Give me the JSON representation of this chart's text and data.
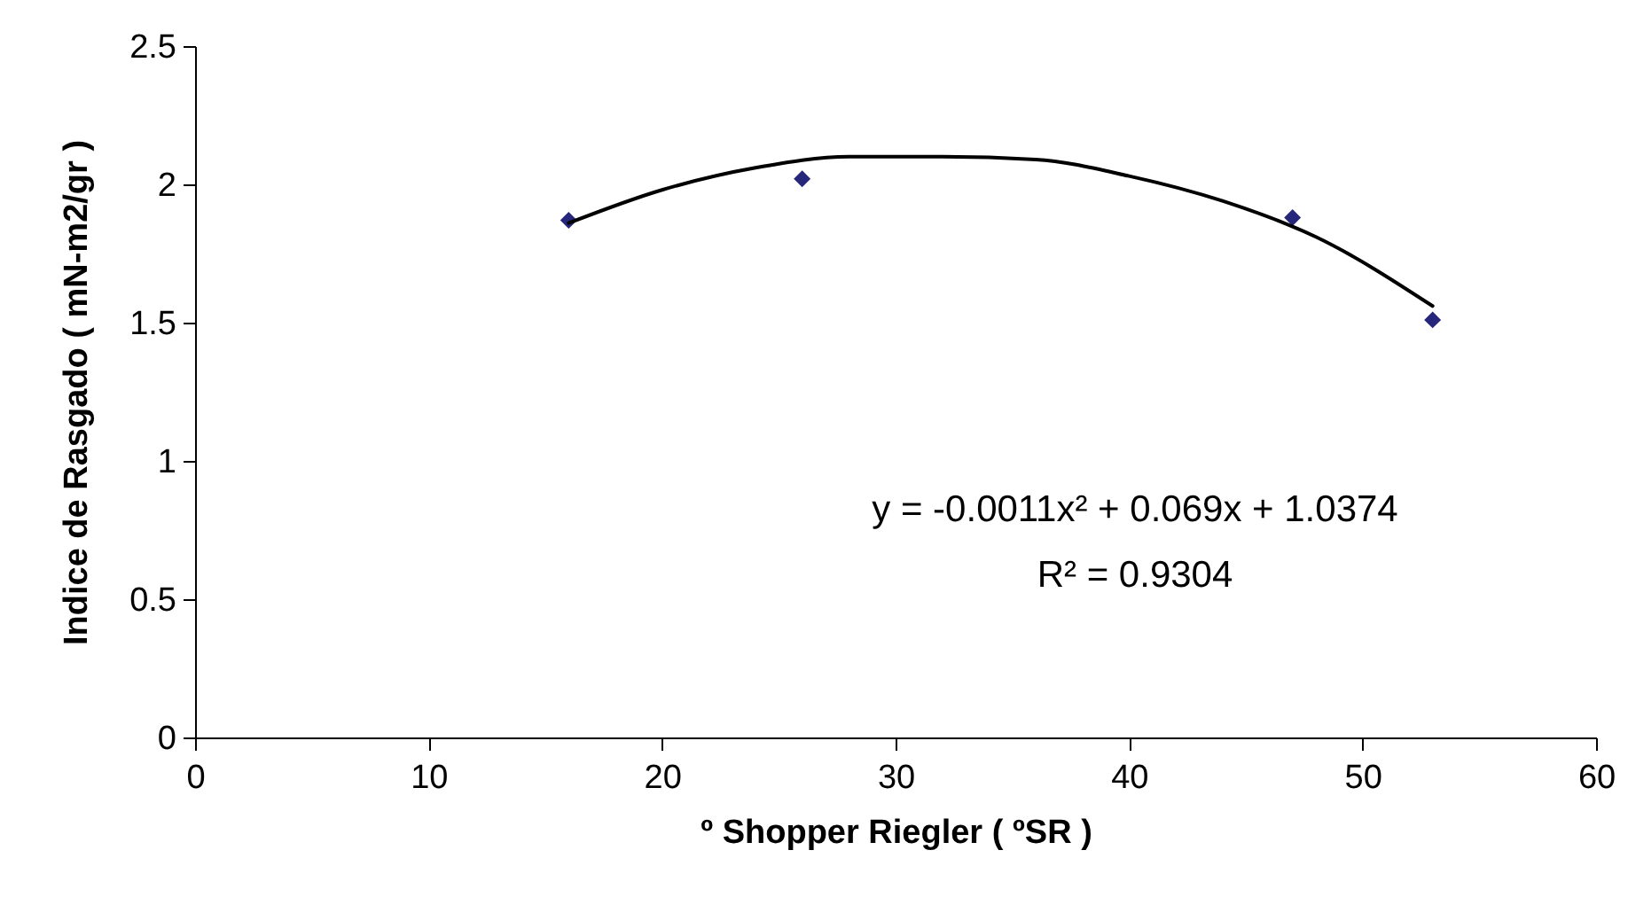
{
  "chart_data": {
    "type": "scatter",
    "xlabel": "º Shopper Riegler ( ºSR )",
    "ylabel": "Indice de Rasgado ( mN-m2/gr )",
    "xlim": [
      0,
      60
    ],
    "xticks": [
      0,
      10,
      20,
      30,
      40,
      50,
      60
    ],
    "ylim": [
      0,
      2.5
    ],
    "yticks": [
      0,
      0.5,
      1,
      1.5,
      2,
      2.5
    ],
    "grid": false,
    "series": [
      {
        "color": "#26267a",
        "marker": "diamond",
        "x": [
          16,
          26,
          47,
          53
        ],
        "values": [
          1.87,
          2.02,
          1.88,
          1.51
        ]
      },
      {
        "type": "line",
        "color": "#000000",
        "marker": "none",
        "line_style": "solid",
        "x": [
          16,
          20,
          24,
          28,
          32,
          36,
          40,
          44,
          48,
          53
        ],
        "values": [
          1.86,
          1.98,
          2.06,
          2.1,
          2.1,
          2.09,
          2.03,
          1.94,
          1.81,
          1.56
        ]
      }
    ],
    "annotations": [
      "y = -0.0011x² + 0.069x + 1.0374",
      "R² = 0.9304"
    ]
  }
}
